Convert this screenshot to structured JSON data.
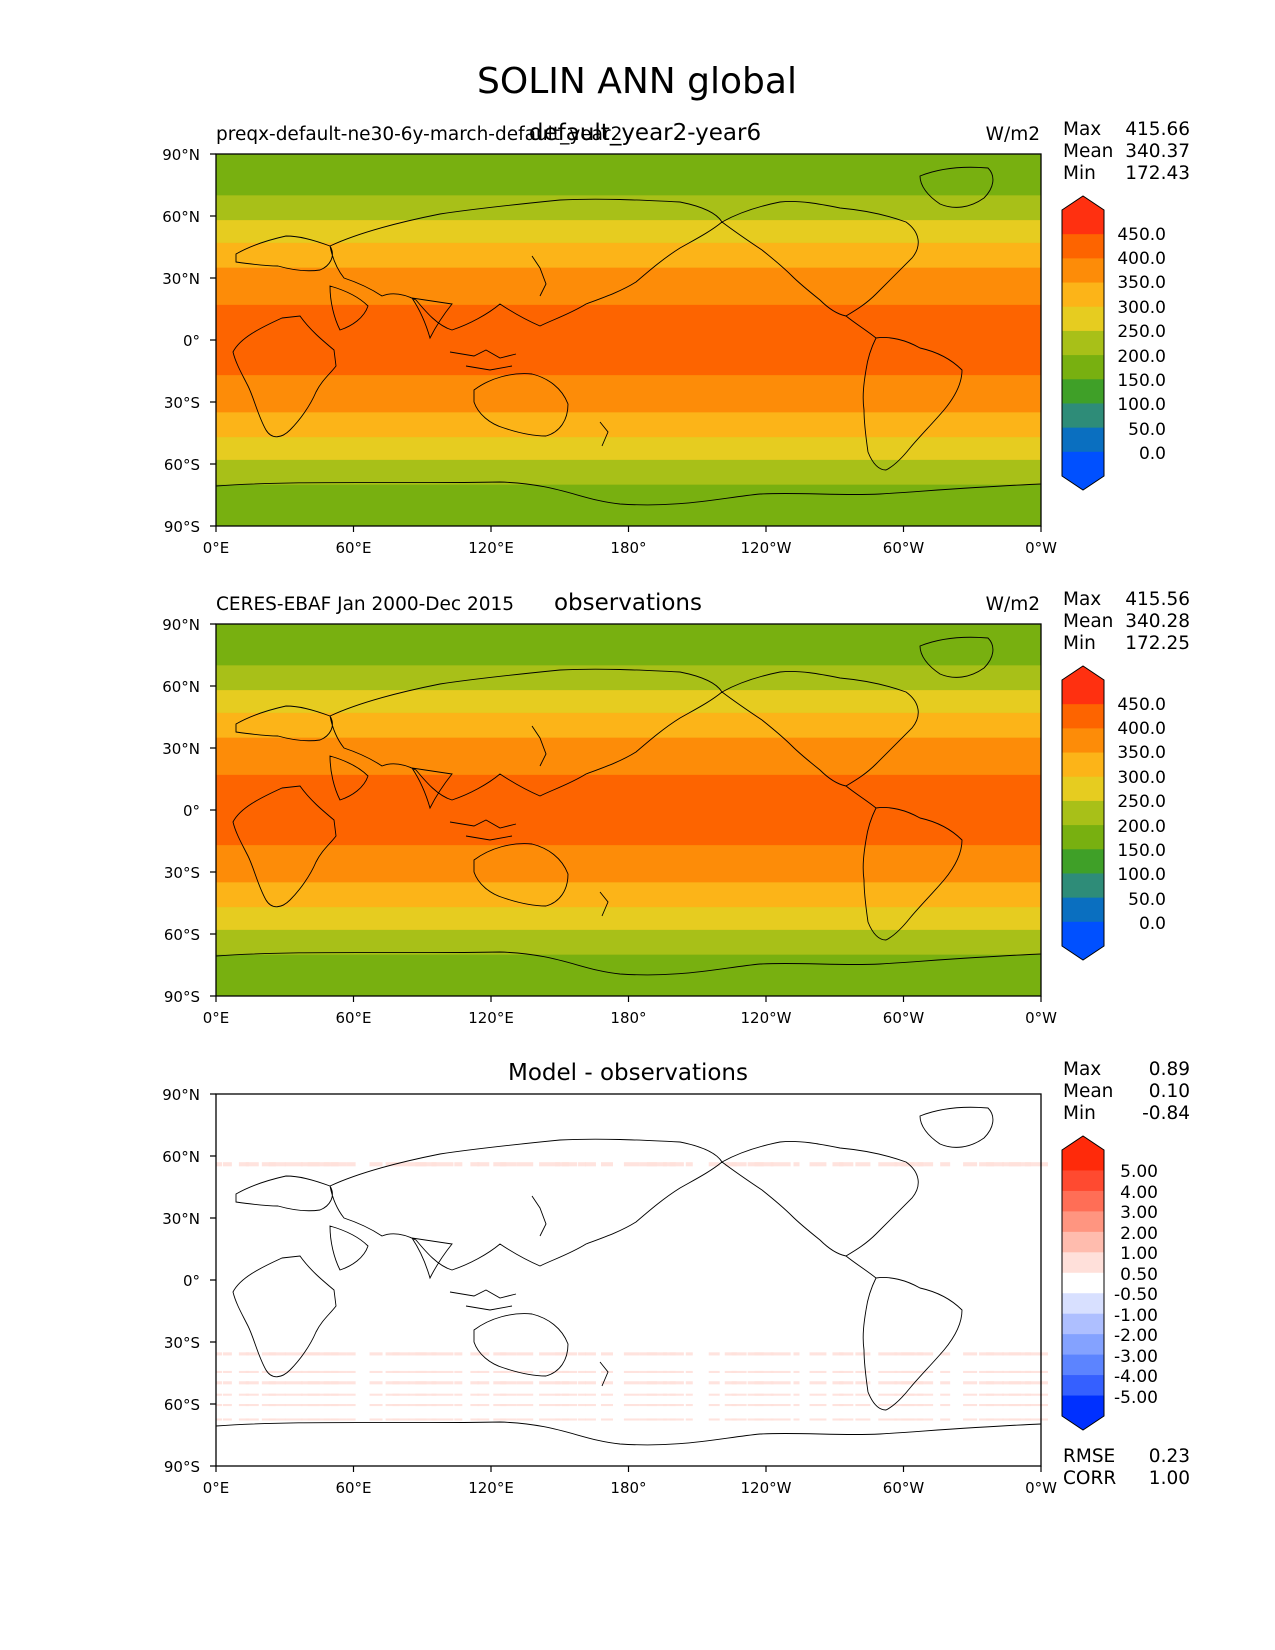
{
  "figure": {
    "title": "SOLIN ANN global"
  },
  "colors": {
    "abs_levels": [
      "#0050ff",
      "#0a6fc0",
      "#2e8c78",
      "#3fa028",
      "#78b010",
      "#a8c018",
      "#e6cc20",
      "#fcb418",
      "#fd8c08",
      "#fd6400",
      "#ff3010"
    ],
    "diff_levels": [
      "#0030ff",
      "#3560ff",
      "#5c84ff",
      "#84a2ff",
      "#aebfff",
      "#d8e0ff",
      "#ffffff",
      "#ffe0da",
      "#ffbcae",
      "#ff9580",
      "#ff6e56",
      "#ff4a30",
      "#ff2a0a"
    ],
    "coastline": "#000000"
  },
  "chart_data": [
    {
      "type": "heatmap",
      "title": "default_year2-year6",
      "left_label": "preqx-default-ne30-6y-march-default_year2",
      "units": "W/m2",
      "stats": [
        {
          "label": "Max",
          "value": "415.66"
        },
        {
          "label": "Mean",
          "value": "340.37"
        },
        {
          "label": "Min",
          "value": "172.43"
        }
      ],
      "colorbar_ticks": [
        "450.0",
        "400.0",
        "350.0",
        "300.0",
        "250.0",
        "200.0",
        "150.0",
        "100.0",
        "50.0",
        "0.0"
      ],
      "colorbar_extend": "both",
      "x_ticks": [
        "0°E",
        "60°E",
        "120°E",
        "180°",
        "120°W",
        "60°W",
        "0°W"
      ],
      "y_ticks": [
        "90°N",
        "60°N",
        "30°N",
        "0°",
        "30°S",
        "60°S",
        "90°S"
      ],
      "xlim": [
        0,
        360
      ],
      "ylim": [
        -90,
        90
      ],
      "lat_bands": [
        {
          "lat": [
            70,
            90
          ],
          "value": 190
        },
        {
          "lat": [
            58,
            70
          ],
          "value": 240
        },
        {
          "lat": [
            47,
            58
          ],
          "value": 290
        },
        {
          "lat": [
            35,
            47
          ],
          "value": 320
        },
        {
          "lat": [
            17,
            35
          ],
          "value": 360
        },
        {
          "lat": [
            -17,
            17
          ],
          "value": 410
        },
        {
          "lat": [
            -35,
            -17
          ],
          "value": 360
        },
        {
          "lat": [
            -47,
            -35
          ],
          "value": 320
        },
        {
          "lat": [
            -58,
            -47
          ],
          "value": 290
        },
        {
          "lat": [
            -70,
            -58
          ],
          "value": 240
        },
        {
          "lat": [
            -90,
            -70
          ],
          "value": 190
        }
      ]
    },
    {
      "type": "heatmap",
      "title": "observations",
      "left_label": "CERES-EBAF Jan 2000-Dec 2015",
      "units": "W/m2",
      "stats": [
        {
          "label": "Max",
          "value": "415.56"
        },
        {
          "label": "Mean",
          "value": "340.28"
        },
        {
          "label": "Min",
          "value": "172.25"
        }
      ],
      "colorbar_ticks": [
        "450.0",
        "400.0",
        "350.0",
        "300.0",
        "250.0",
        "200.0",
        "150.0",
        "100.0",
        "50.0",
        "0.0"
      ],
      "colorbar_extend": "both",
      "x_ticks": [
        "0°E",
        "60°E",
        "120°E",
        "180°",
        "120°W",
        "60°W",
        "0°W"
      ],
      "y_ticks": [
        "90°N",
        "60°N",
        "30°N",
        "0°",
        "30°S",
        "60°S",
        "90°S"
      ],
      "xlim": [
        0,
        360
      ],
      "ylim": [
        -90,
        90
      ],
      "lat_bands": [
        {
          "lat": [
            70,
            90
          ],
          "value": 190
        },
        {
          "lat": [
            58,
            70
          ],
          "value": 240
        },
        {
          "lat": [
            47,
            58
          ],
          "value": 290
        },
        {
          "lat": [
            35,
            47
          ],
          "value": 320
        },
        {
          "lat": [
            17,
            35
          ],
          "value": 360
        },
        {
          "lat": [
            -17,
            17
          ],
          "value": 410
        },
        {
          "lat": [
            -35,
            -17
          ],
          "value": 360
        },
        {
          "lat": [
            -47,
            -35
          ],
          "value": 320
        },
        {
          "lat": [
            -58,
            -47
          ],
          "value": 290
        },
        {
          "lat": [
            -70,
            -58
          ],
          "value": 240
        },
        {
          "lat": [
            -90,
            -70
          ],
          "value": 190
        }
      ]
    },
    {
      "type": "heatmap",
      "title": "Model - observations",
      "left_label": "",
      "units": "",
      "stats": [
        {
          "label": "Max",
          "value": "0.89"
        },
        {
          "label": "Mean",
          "value": "0.10"
        },
        {
          "label": "Min",
          "value": "-0.84"
        }
      ],
      "extra_stats": [
        {
          "label": "RMSE",
          "value": "0.23"
        },
        {
          "label": "CORR",
          "value": "1.00"
        }
      ],
      "colorbar_ticks": [
        "5.00",
        "4.00",
        "3.00",
        "2.00",
        "1.00",
        "0.50",
        "-0.50",
        "-1.00",
        "-2.00",
        "-3.00",
        "-4.00",
        "-5.00"
      ],
      "colorbar_extend": "both",
      "x_ticks": [
        "0°E",
        "60°E",
        "120°E",
        "180°",
        "120°W",
        "60°W",
        "0°W"
      ],
      "y_ticks": [
        "90°N",
        "60°N",
        "30°N",
        "0°",
        "30°S",
        "60°S",
        "90°S"
      ],
      "xlim": [
        0,
        360
      ],
      "ylim": [
        -90,
        90
      ],
      "lat_bands": [
        {
          "lat": [
            53,
            57
          ],
          "value": 0.6
        },
        {
          "lat": [
            -38,
            -35
          ],
          "value": 0.6
        },
        {
          "lat": [
            -46,
            -44
          ],
          "value": 0.6
        },
        {
          "lat": [
            -52,
            -49
          ],
          "value": 0.6
        },
        {
          "lat": [
            -57,
            -55
          ],
          "value": 0.6
        },
        {
          "lat": [
            -62,
            -60
          ],
          "value": 0.6
        },
        {
          "lat": [
            -69,
            -67
          ],
          "value": 0.6
        }
      ]
    }
  ]
}
